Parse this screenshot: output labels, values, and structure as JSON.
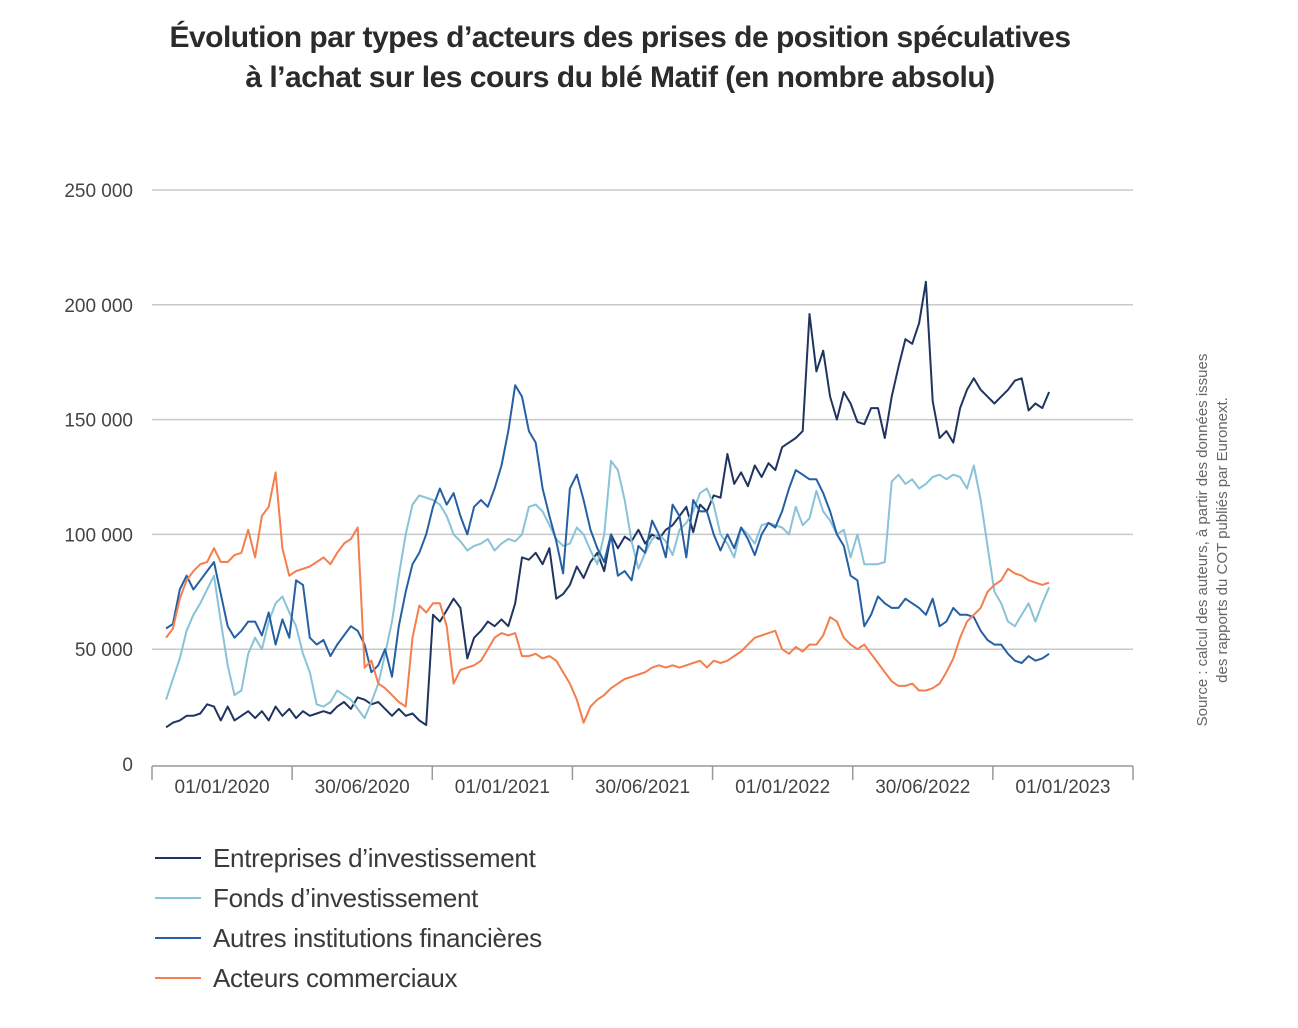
{
  "chart_data": {
    "type": "line",
    "title": "Évolution par types d’acteurs des prises de position spéculatives à l’achat sur les cours du blé Matif (en nombre absolu)",
    "title_lines": [
      "Évolution par types d’acteurs des prises de position spéculatives",
      "à l’achat sur les cours du blé Matif (en nombre absolu)"
    ],
    "source": "Source : calcul des auteurs, à partir des données issues des rapports du COT publiés par Euronext.",
    "source_lines": [
      "Source : calcul des auteurs, à partir des données issues",
      "des rapports du COT publiés par Euronext."
    ],
    "x_ticks": [
      "01/01/2020",
      "30/06/2020",
      "01/01/2021",
      "30/06/2021",
      "01/01/2022",
      "30/06/2022",
      "01/01/2023"
    ],
    "y_ticks": [
      "0",
      "50 000",
      "100 000",
      "150 000",
      "200 000",
      "250 000"
    ],
    "ylim": [
      0,
      250000
    ],
    "grid": "horizontal",
    "legend_position": "bottom-left",
    "x_start_date": "2019-10-20",
    "x_end_date": "2022-12-14",
    "series": [
      {
        "name": "Entreprises d’investissement",
        "color": "#1f3560",
        "values": [
          16000,
          18000,
          19000,
          21000,
          21000,
          22000,
          26000,
          25000,
          19000,
          25000,
          19000,
          21000,
          23000,
          20000,
          23000,
          19000,
          25000,
          21000,
          24000,
          20000,
          23000,
          21000,
          22000,
          23000,
          22000,
          25000,
          27000,
          24000,
          29000,
          28000,
          26000,
          27000,
          24000,
          21000,
          24000,
          21000,
          22000,
          19000,
          17000,
          65000,
          62000,
          67000,
          72000,
          68000,
          46000,
          55000,
          58000,
          62000,
          60000,
          63000,
          60000,
          70000,
          90000,
          89000,
          92000,
          87000,
          94000,
          72000,
          74000,
          78000,
          86000,
          81000,
          88000,
          92000,
          84000,
          100000,
          94000,
          99000,
          97000,
          102000,
          96000,
          100000,
          98000,
          102000,
          104000,
          108000,
          112000,
          101000,
          113000,
          110000,
          117000,
          116000,
          135000,
          122000,
          127000,
          121000,
          130000,
          125000,
          131000,
          128000,
          138000,
          140000,
          142000,
          145000,
          196000,
          171000,
          180000,
          160000,
          150000,
          162000,
          157000,
          149000,
          148000,
          155000,
          155000,
          142000,
          160000,
          173000,
          185000,
          183000,
          192000,
          210000,
          158000,
          142000,
          145000,
          140000,
          155000,
          163000,
          168000,
          163000,
          160000,
          157000,
          160000,
          163000,
          167000,
          168000,
          154000,
          157000,
          155000,
          162000
        ]
      },
      {
        "name": "Fonds d’investissement",
        "color": "#8ac2d8",
        "values": [
          28000,
          37000,
          46000,
          58000,
          65000,
          70000,
          76000,
          82000,
          62000,
          43000,
          30000,
          32000,
          48000,
          55000,
          50000,
          62000,
          70000,
          73000,
          66000,
          60000,
          48000,
          40000,
          26000,
          25000,
          27000,
          32000,
          30000,
          28000,
          24000,
          20000,
          27000,
          35000,
          48000,
          62000,
          82000,
          100000,
          113000,
          117000,
          116000,
          115000,
          113000,
          108000,
          100000,
          97000,
          93000,
          95000,
          96000,
          98000,
          93000,
          96000,
          98000,
          97000,
          100000,
          112000,
          113000,
          110000,
          104000,
          98000,
          95000,
          96000,
          103000,
          100000,
          93000,
          87000,
          100000,
          132000,
          128000,
          115000,
          97000,
          85000,
          92000,
          98000,
          100000,
          97000,
          91000,
          102000,
          105000,
          110000,
          118000,
          120000,
          113000,
          100000,
          96000,
          90000,
          103000,
          100000,
          96000,
          104000,
          105000,
          104000,
          103000,
          100000,
          112000,
          104000,
          107000,
          119000,
          110000,
          106000,
          100000,
          102000,
          90000,
          100000,
          87000,
          87000,
          87000,
          88000,
          123000,
          126000,
          122000,
          124000,
          120000,
          122000,
          125000,
          126000,
          124000,
          126000,
          125000,
          120000,
          130000,
          115000,
          95000,
          75000,
          70000,
          62000,
          60000,
          65000,
          70000,
          62000,
          70000,
          77000
        ]
      },
      {
        "name": "Autres institutions financières",
        "color": "#2660a4",
        "values": [
          59000,
          61000,
          76000,
          82000,
          76000,
          80000,
          84000,
          88000,
          74000,
          60000,
          55000,
          58000,
          62000,
          62000,
          56000,
          66000,
          52000,
          63000,
          55000,
          80000,
          78000,
          55000,
          52000,
          54000,
          47000,
          52000,
          56000,
          60000,
          58000,
          52000,
          40000,
          43000,
          50000,
          38000,
          60000,
          75000,
          87000,
          92000,
          100000,
          112000,
          120000,
          113000,
          118000,
          108000,
          100000,
          112000,
          115000,
          112000,
          120000,
          130000,
          145000,
          165000,
          160000,
          145000,
          140000,
          120000,
          108000,
          97000,
          83000,
          120000,
          126000,
          115000,
          102000,
          94000,
          88000,
          100000,
          82000,
          84000,
          80000,
          95000,
          92000,
          106000,
          100000,
          90000,
          113000,
          108000,
          90000,
          115000,
          110000,
          110000,
          100000,
          93000,
          100000,
          94000,
          103000,
          98000,
          91000,
          100000,
          105000,
          103000,
          110000,
          120000,
          128000,
          126000,
          124000,
          124000,
          118000,
          110000,
          100000,
          95000,
          82000,
          80000,
          60000,
          65000,
          73000,
          70000,
          68000,
          68000,
          72000,
          70000,
          68000,
          65000,
          72000,
          60000,
          62000,
          68000,
          65000,
          65000,
          64000,
          58000,
          54000,
          52000,
          52000,
          48000,
          45000,
          44000,
          47000,
          45000,
          46000,
          48000
        ]
      },
      {
        "name": "Acteurs commerciaux",
        "color": "#f47e4e",
        "values": [
          55000,
          59000,
          72000,
          80000,
          84000,
          87000,
          88000,
          94000,
          88000,
          88000,
          91000,
          92000,
          102000,
          90000,
          108000,
          112000,
          127000,
          94000,
          82000,
          84000,
          85000,
          86000,
          88000,
          90000,
          87000,
          92000,
          96000,
          98000,
          103000,
          42000,
          45000,
          35000,
          33000,
          30000,
          27000,
          25000,
          55000,
          69000,
          66000,
          70000,
          70000,
          60000,
          35000,
          41000,
          42000,
          43000,
          45000,
          50000,
          55000,
          57000,
          56000,
          57000,
          47000,
          47000,
          48000,
          46000,
          47000,
          45000,
          40000,
          35000,
          28000,
          18000,
          25000,
          28000,
          30000,
          33000,
          35000,
          37000,
          38000,
          39000,
          40000,
          42000,
          43000,
          42000,
          43000,
          42000,
          43000,
          44000,
          45000,
          42000,
          45000,
          44000,
          45000,
          47000,
          49000,
          52000,
          55000,
          56000,
          57000,
          58000,
          50000,
          48000,
          51000,
          49000,
          52000,
          52000,
          56000,
          64000,
          62000,
          55000,
          52000,
          50000,
          52000,
          48000,
          44000,
          40000,
          36000,
          34000,
          34000,
          35000,
          32000,
          32000,
          33000,
          35000,
          40000,
          46000,
          55000,
          62000,
          65000,
          68000,
          75000,
          78000,
          80000,
          85000,
          83000,
          82000,
          80000,
          79000,
          78000,
          79000
        ]
      }
    ]
  }
}
